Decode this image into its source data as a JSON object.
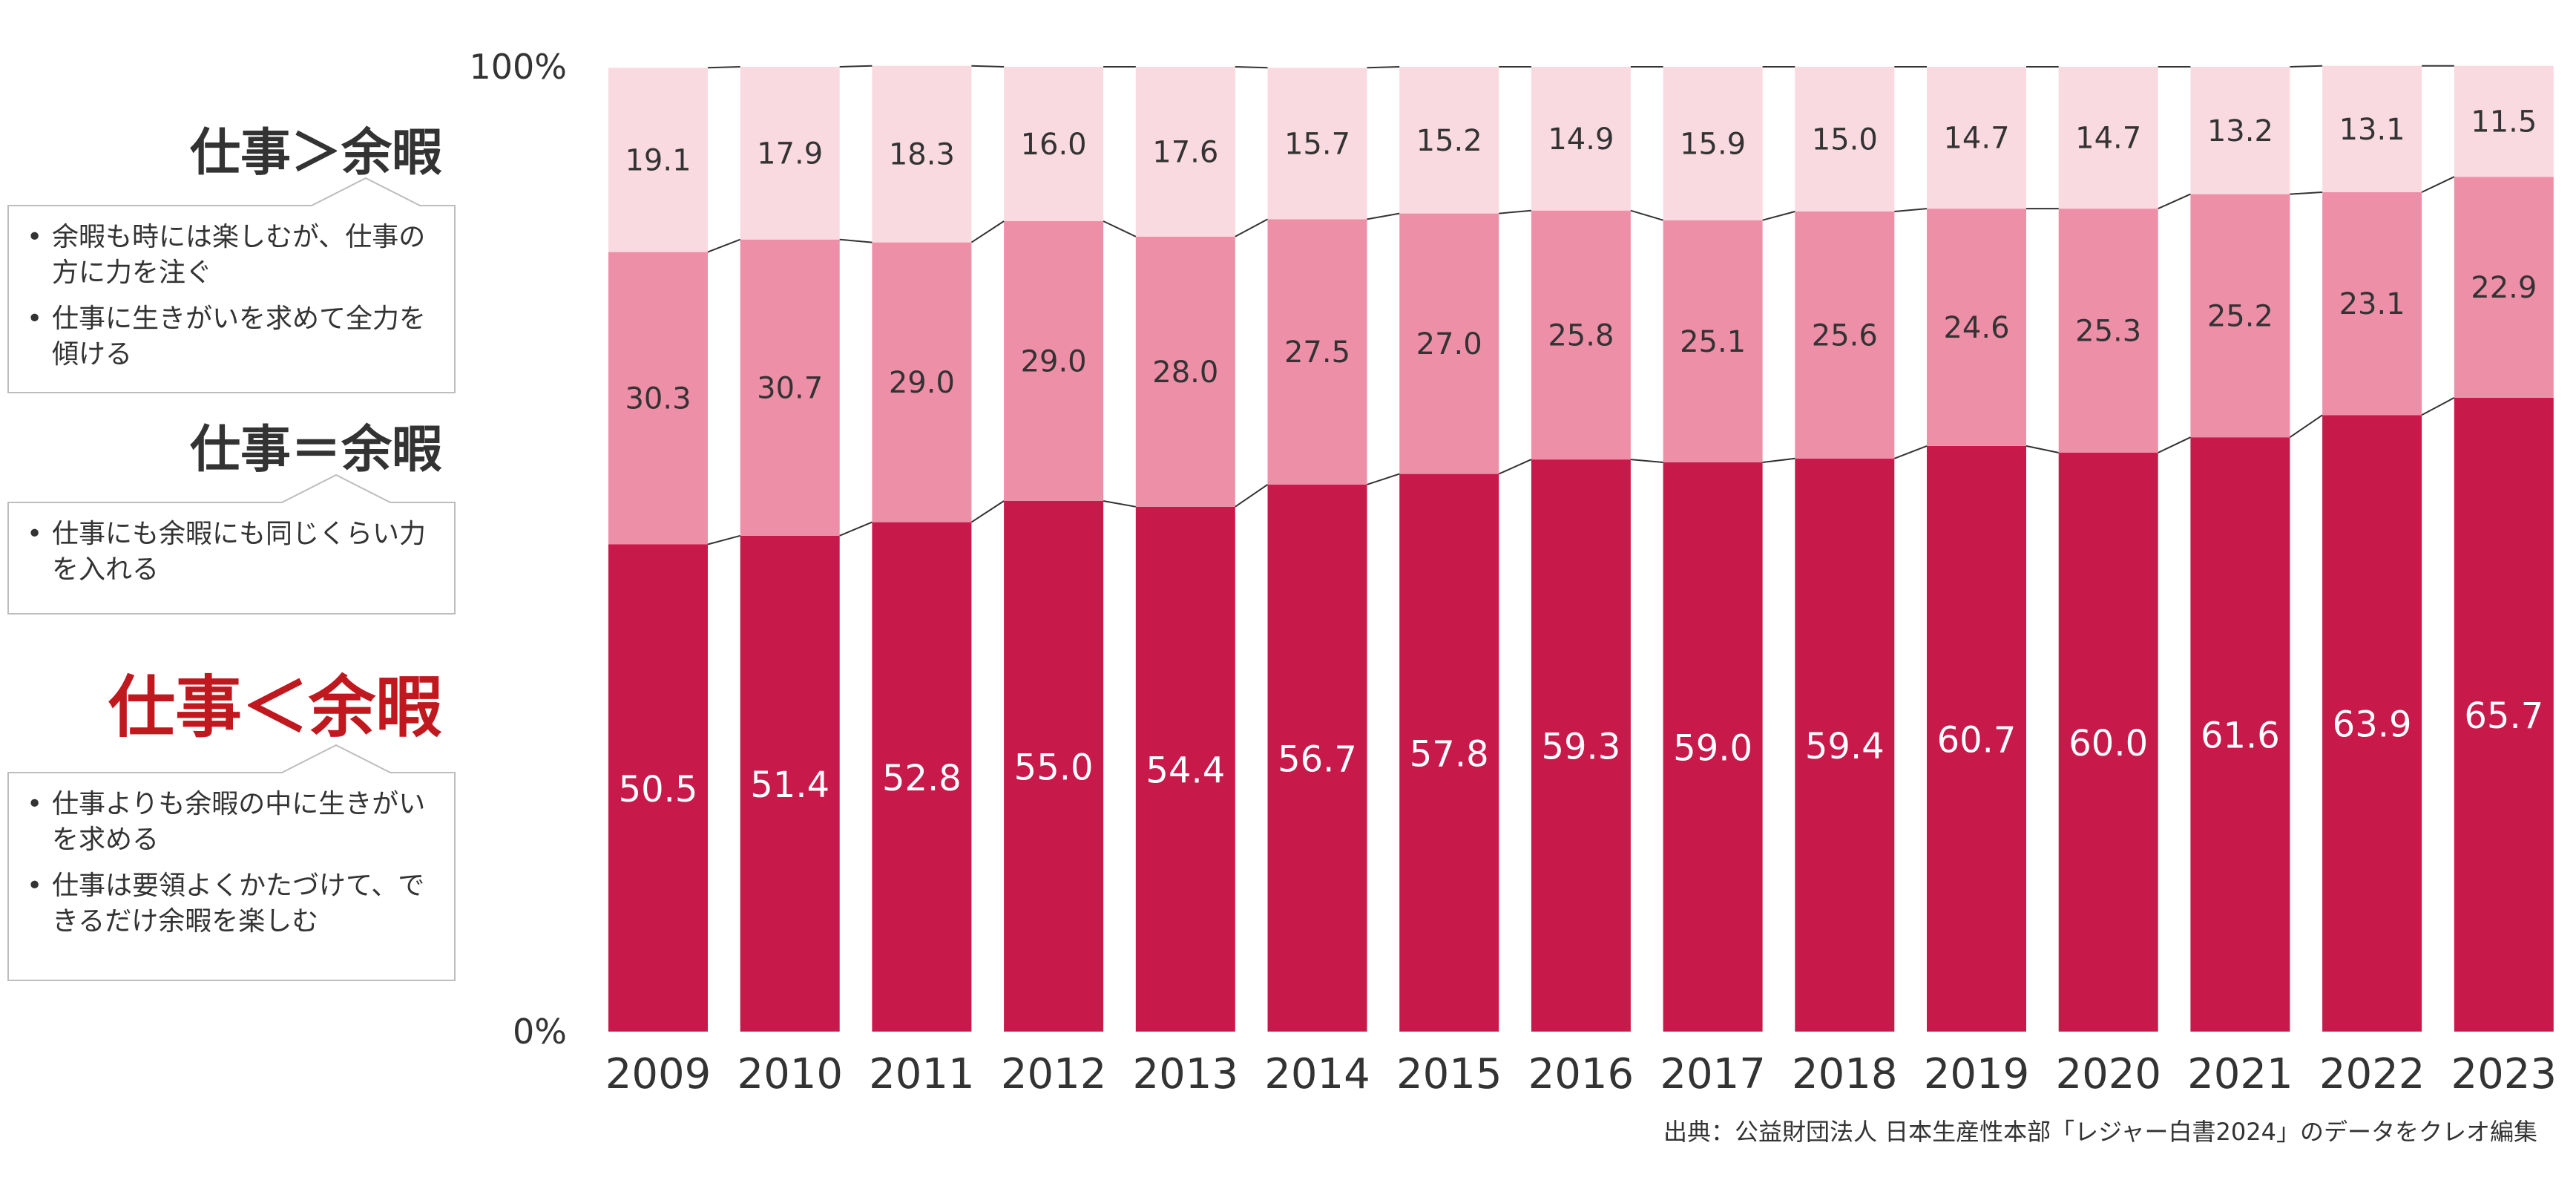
{
  "legend_panel": {
    "groups": [
      {
        "heading": "仕事＞余暇",
        "heading_color": "#333333",
        "items": [
          "余暇も時には楽しむが、仕事の方に力を注ぐ",
          "仕事に生きがいを求めて全力を傾ける"
        ]
      },
      {
        "heading": "仕事＝余暇",
        "heading_color": "#333333",
        "items": [
          "仕事にも余暇にも同じくらい力を入れる"
        ]
      },
      {
        "heading": "仕事＜余暇",
        "heading_color": "#c0181f",
        "items": [
          "仕事よりも余暇の中に生きがいを求める",
          "仕事は要領よくかたづけて、できるだけ余暇を楽しむ"
        ]
      }
    ]
  },
  "source_note": "出典：公益財団法人 日本生産性本部「レジャー白書2024」のデータをクレオ編集",
  "chart_data": {
    "type": "bar",
    "stacked": true,
    "categories": [
      "2009",
      "2010",
      "2011",
      "2012",
      "2013",
      "2014",
      "2015",
      "2016",
      "2017",
      "2018",
      "2019",
      "2020",
      "2021",
      "2022",
      "2023"
    ],
    "series": [
      {
        "name": "仕事＜余暇",
        "color": "#c8194b",
        "label_color": "#ffffff",
        "values": [
          50.5,
          51.4,
          52.8,
          55.0,
          54.4,
          56.7,
          57.8,
          59.3,
          59.0,
          59.4,
          60.7,
          60.0,
          61.6,
          63.9,
          65.7
        ]
      },
      {
        "name": "仕事＝余暇",
        "color": "#ee8fa8",
        "label_color": "#333333",
        "values": [
          30.3,
          30.7,
          29.0,
          29.0,
          28.0,
          27.5,
          27.0,
          25.8,
          25.1,
          25.6,
          24.6,
          25.3,
          25.2,
          23.1,
          22.9
        ]
      },
      {
        "name": "仕事＞余暇",
        "color": "#fadae1",
        "label_color": "#333333",
        "values": [
          19.1,
          17.9,
          18.3,
          16.0,
          17.6,
          15.7,
          15.2,
          14.9,
          15.9,
          15.0,
          14.7,
          14.7,
          13.2,
          13.1,
          11.5
        ]
      }
    ],
    "ylim": [
      0,
      100
    ],
    "y_tick_labels": [
      "0%",
      "100%"
    ],
    "grid": false,
    "connector_lines": true
  }
}
